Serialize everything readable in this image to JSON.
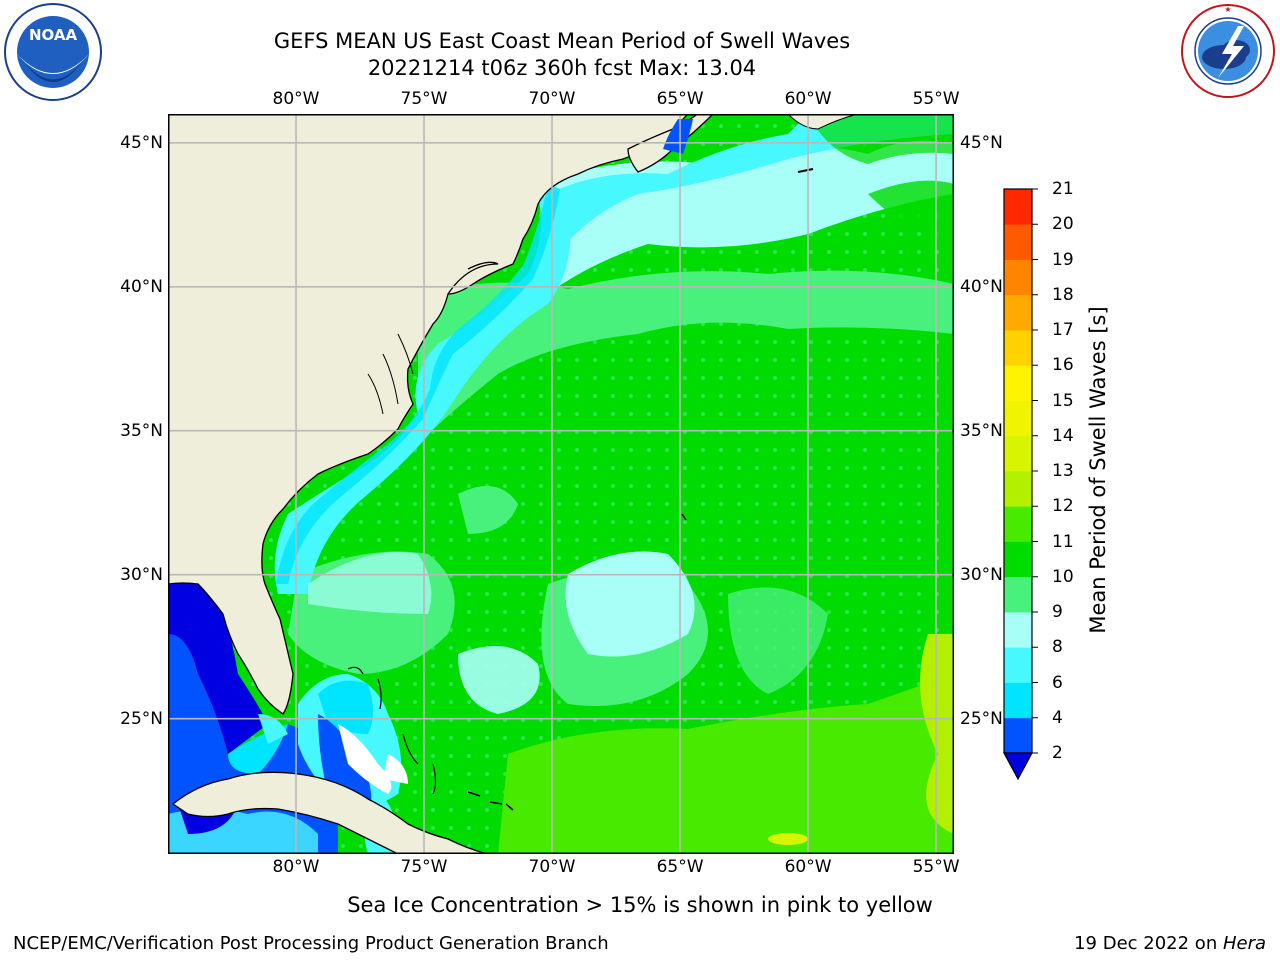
{
  "header": {
    "title_line1": "GEFS MEAN US East Coast Mean Period of Swell Waves",
    "title_line2": "20221214 t06z 360h fcst   Max: 13.04"
  },
  "logos": {
    "left": {
      "name": "noaa-logo",
      "text": "NOAA",
      "ring_text": "NATIONAL OCEANIC AND ATMOSPHERIC ADMINISTRATION · U.S. DEPARTMENT OF COMMERCE"
    },
    "right": {
      "name": "nws-logo",
      "ring_text": "NATIONAL WEATHER SERVICE"
    }
  },
  "map": {
    "lon_labels": [
      "80°W",
      "75°W",
      "70°W",
      "65°W",
      "60°W",
      "55°W"
    ],
    "lat_labels": [
      "45°N",
      "40°N",
      "35°N",
      "30°N",
      "25°N"
    ],
    "extent": {
      "lon": [
        -85,
        -54.3
      ],
      "lat": [
        20.3,
        46.0
      ]
    },
    "gridlines": true,
    "colors": {
      "land": "#efeedb",
      "grid": "#b8b8b8",
      "coast": "#000000"
    }
  },
  "colorbar": {
    "label": "Mean Period of Swell Waves [s]",
    "ticks": [
      "2",
      "4",
      "6",
      "8",
      "9",
      "10",
      "11",
      "12",
      "13",
      "14",
      "15",
      "16",
      "17",
      "18",
      "19",
      "20",
      "21"
    ],
    "colors": [
      "#0053ff",
      "#00e5ff",
      "#48f8ff",
      "#a8fff8",
      "#48f07c",
      "#00dc00",
      "#48ea00",
      "#b3f000",
      "#d8f400",
      "#f0f400",
      "#fff400",
      "#ffd200",
      "#ffaa00",
      "#ff8400",
      "#ff5a00",
      "#ff2800"
    ],
    "extend_color": "#0000e0"
  },
  "footer": {
    "note": "Sea Ice Concentration > 15% is shown in pink to yellow",
    "credit": "NCEP/EMC/Verification Post Processing Product Generation Branch",
    "date": "19 Dec 2022 on ",
    "machine": "Hera"
  }
}
